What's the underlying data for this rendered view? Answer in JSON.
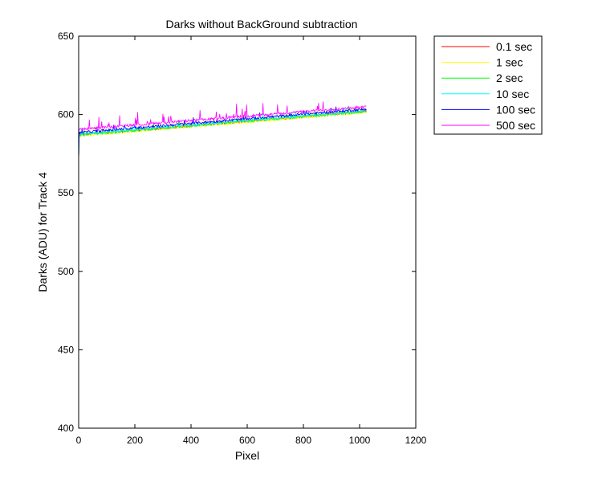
{
  "chart_data": {
    "type": "line",
    "title": "Darks without BackGround subtraction",
    "xlabel": "Pixel",
    "ylabel": "Darks (ADU) for Track 4",
    "xlim": [
      0,
      1200
    ],
    "ylim": [
      400,
      650
    ],
    "x_ticks": [
      0,
      200,
      400,
      600,
      800,
      1000,
      1200
    ],
    "y_ticks": [
      400,
      450,
      500,
      550,
      600,
      650
    ],
    "x_tick_labels": [
      "0",
      "200",
      "400",
      "600",
      "800",
      "1000",
      "1200"
    ],
    "y_tick_labels": [
      "400",
      "450",
      "500",
      "550",
      "600",
      "650"
    ],
    "grid": false,
    "legend_position": "outside-top-right",
    "series": [
      {
        "name": "0.1 sec",
        "color": "#ff0000",
        "x": [
          0,
          1024
        ],
        "values": [
          587,
          602
        ],
        "start_value": 571
      },
      {
        "name": "1 sec",
        "color": "#ffff00",
        "x": [
          0,
          1024
        ],
        "values": [
          586.5,
          601.5
        ],
        "start_value": 571
      },
      {
        "name": "2 sec",
        "color": "#00ff00",
        "x": [
          0,
          1024
        ],
        "values": [
          587,
          602
        ],
        "start_value": 571
      },
      {
        "name": "10 sec",
        "color": "#00ffff",
        "x": [
          0,
          1024
        ],
        "values": [
          587.5,
          602.5
        ],
        "start_value": 571
      },
      {
        "name": "100 sec",
        "color": "#0000ff",
        "x": [
          0,
          1024
        ],
        "values": [
          588.5,
          603.5
        ],
        "start_value": 570
      },
      {
        "name": "500 sec",
        "color": "#ff00ff",
        "x": [
          0,
          1024
        ],
        "values": [
          590.5,
          605
        ],
        "start_value": 589
      }
    ]
  }
}
